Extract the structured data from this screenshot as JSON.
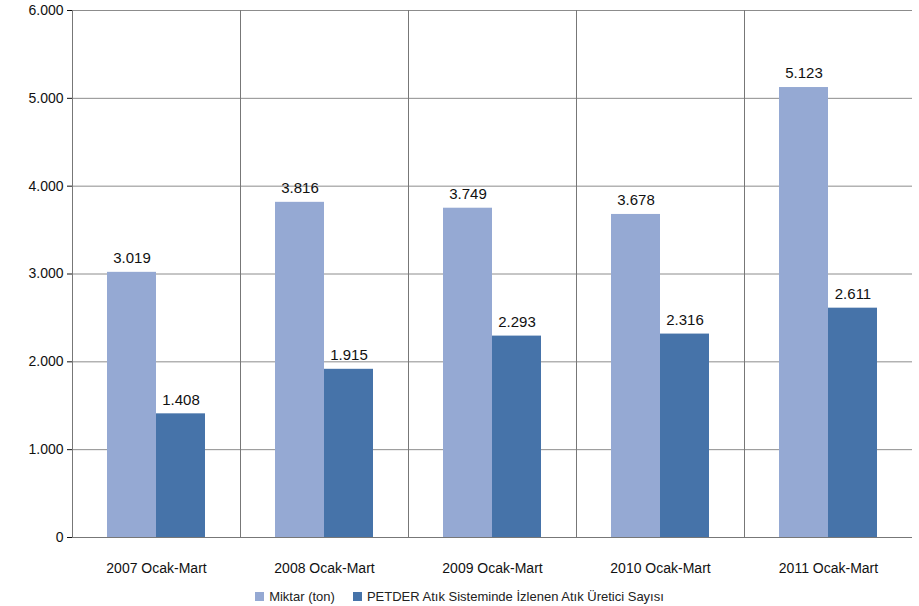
{
  "chart_data": {
    "type": "bar",
    "categories": [
      "2007 Ocak-Mart",
      "2008 Ocak-Mart",
      "2009 Ocak-Mart",
      "2010 Ocak-Mart",
      "2011 Ocak-Mart"
    ],
    "series": [
      {
        "name": "Miktar (ton)",
        "color": "#95a9d3",
        "values": [
          3019,
          3816,
          3749,
          3678,
          5123
        ],
        "value_labels": [
          "3.019",
          "3.816",
          "3.749",
          "3.678",
          "5.123"
        ]
      },
      {
        "name": "PETDER Atık Sisteminde İzlenen  Atık Üretici Sayısı",
        "color": "#4673a9",
        "values": [
          1408,
          1915,
          2293,
          2316,
          2611
        ],
        "value_labels": [
          "1.408",
          "1.915",
          "2.293",
          "2.316",
          "2.611"
        ]
      }
    ],
    "ylim": [
      0,
      6000
    ],
    "yticks": [
      0,
      {
        "value": 1000,
        "label": "1.000"
      },
      {
        "value": 2000,
        "label": "2.000"
      },
      {
        "value": 3000,
        "label": "3.000"
      },
      {
        "value": 4000,
        "label": "4.000"
      },
      {
        "value": 5000,
        "label": "5.000"
      },
      {
        "value": 6000,
        "label": "6.000"
      }
    ],
    "grid": true,
    "data_labels": true,
    "legend": "bottom"
  }
}
